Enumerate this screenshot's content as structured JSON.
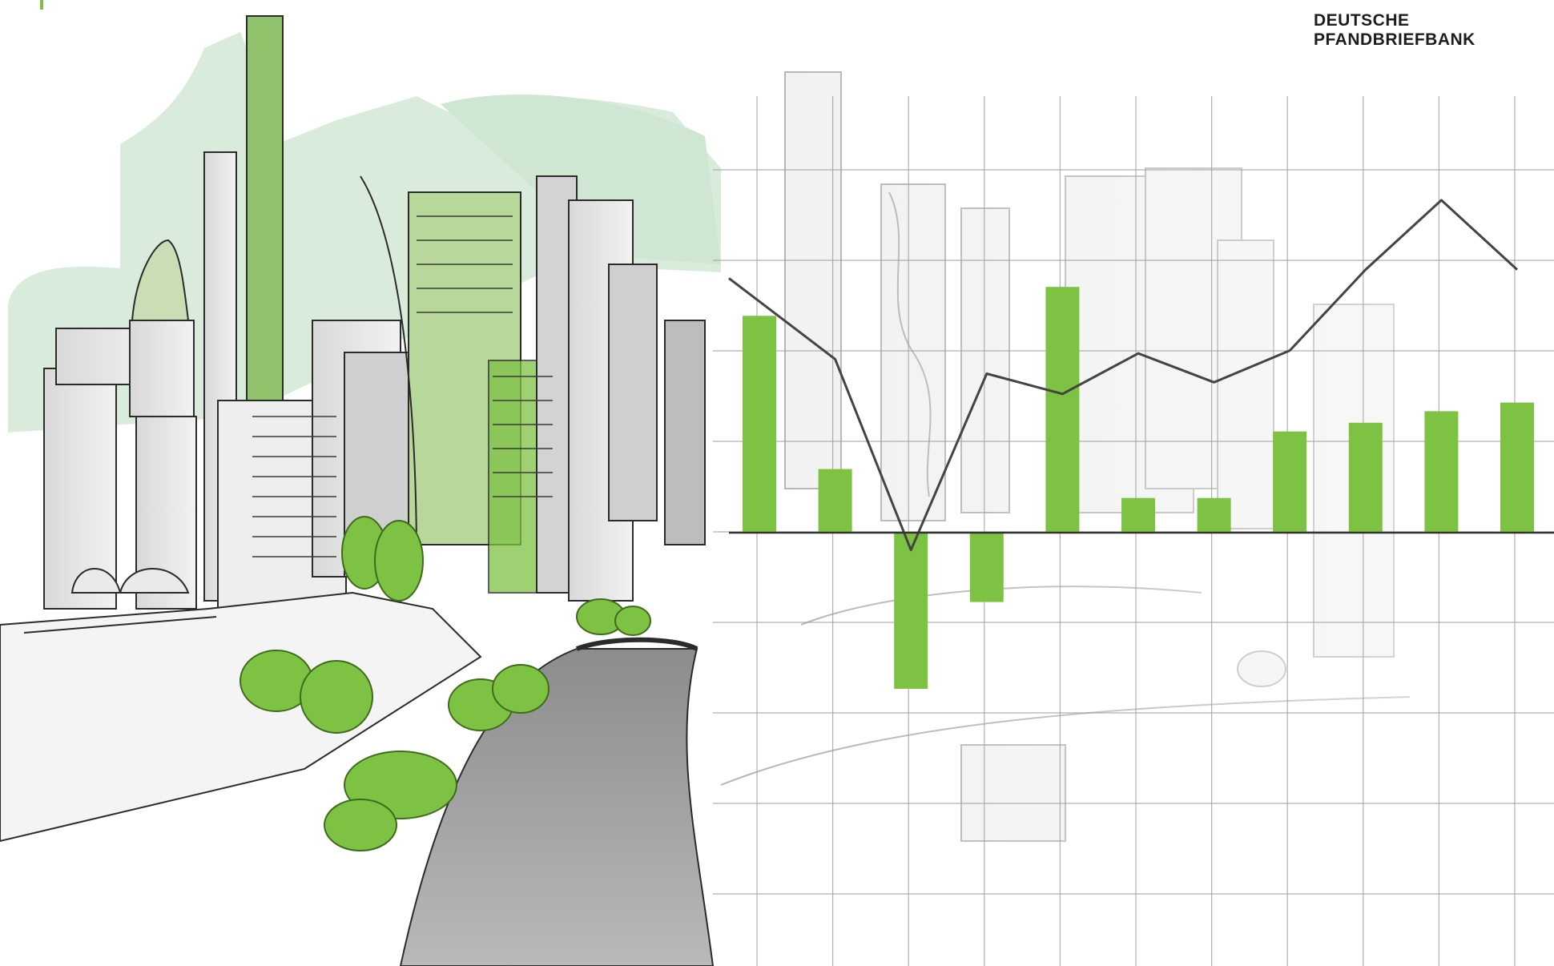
{
  "brand": {
    "line1": "DEUTSCHE",
    "line2": "PFANDBRIEFBANK"
  },
  "colors": {
    "accent": "#7dc242",
    "accent_dark": "#5e9e2e",
    "pale_green": "#d8ebd9",
    "sketch_grey": "#bdbdbd",
    "ink": "#2b2b2b",
    "grid": "#9e9e9e"
  },
  "chart_data": {
    "type": "bar",
    "title": "",
    "xlabel": "",
    "ylabel": "",
    "grid": true,
    "ylim": [
      -5.3,
      15.1
    ],
    "categories": [
      "",
      "",
      "",
      "",
      "",
      "",
      "",
      "",
      "",
      "",
      ""
    ],
    "series": [
      {
        "type": "bar",
        "values": [
          7.5,
          2.2,
          -5.4,
          -2.4,
          8.5,
          1.2,
          1.2,
          3.5,
          3.8,
          4.2,
          4.5
        ]
      },
      {
        "type": "line",
        "values": [
          8.8,
          6.0,
          -0.6,
          5.5,
          4.8,
          6.2,
          5.2,
          6.3,
          9.1,
          11.5,
          9.1
        ]
      }
    ]
  }
}
